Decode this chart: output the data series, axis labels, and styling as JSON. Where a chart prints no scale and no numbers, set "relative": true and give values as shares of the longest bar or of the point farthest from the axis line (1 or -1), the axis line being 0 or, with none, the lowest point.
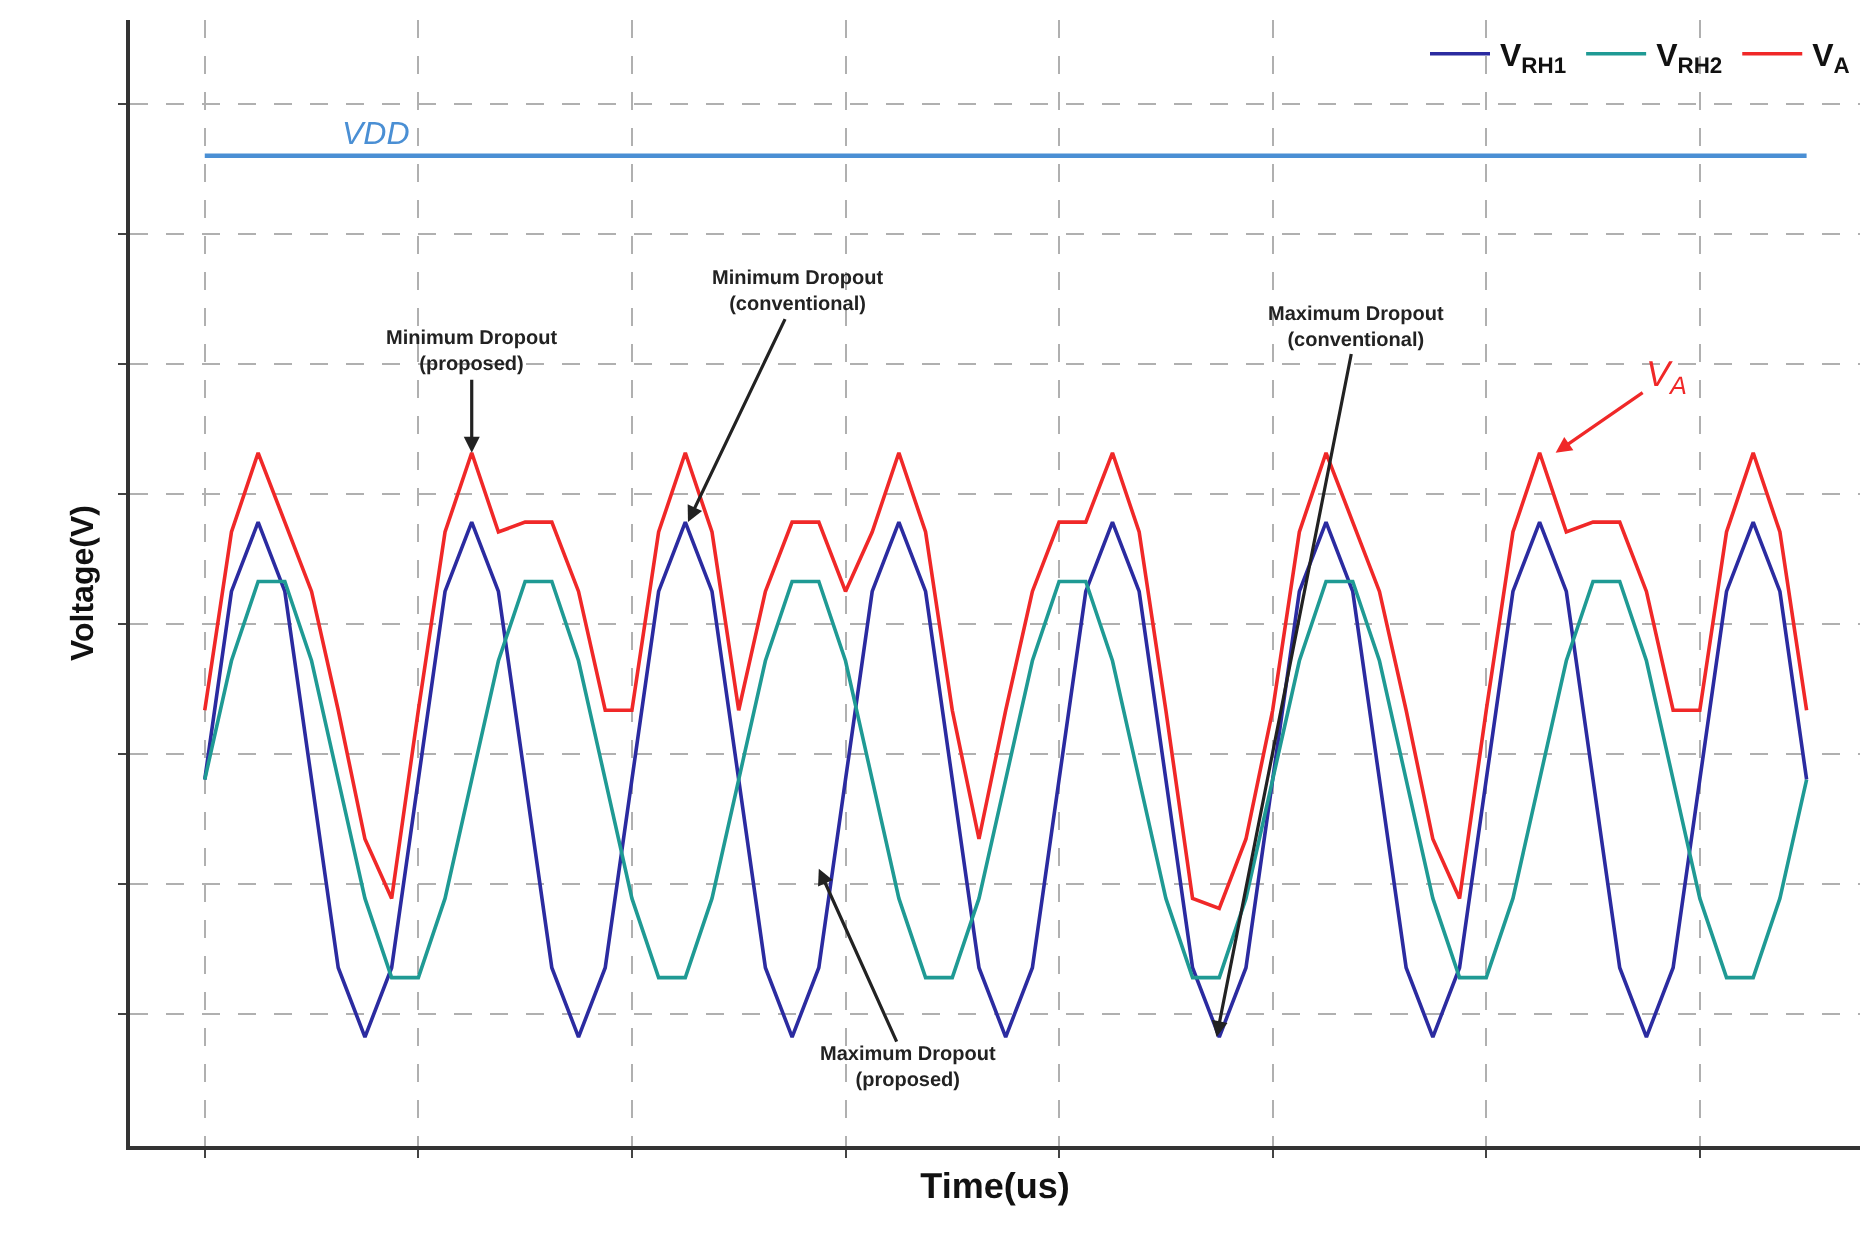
{
  "chart_data": {
    "type": "line",
    "relative": true,
    "xlabel": "Time(us)",
    "ylabel": "Voltage(V)",
    "grid": true,
    "legend": "top right",
    "tick_labels": false,
    "marker": "none",
    "line_style": "solid",
    "categories": [
      null,
      null,
      null,
      null,
      null,
      null,
      null,
      null,
      null,
      null,
      null,
      null,
      null,
      null,
      null,
      null,
      null,
      null,
      null,
      null,
      null,
      null,
      null,
      null,
      null,
      null,
      null,
      null,
      null,
      null,
      null,
      null,
      null,
      null,
      null,
      null,
      null,
      null,
      null,
      null,
      null,
      null,
      null,
      null,
      null,
      null,
      null,
      null,
      null,
      null,
      null,
      null,
      null,
      null,
      null,
      null,
      null,
      null,
      null,
      null,
      null
    ],
    "series": [
      {
        "name": "V$_{RH1}$",
        "color": "#2b2ba0",
        "values": [
          0.37,
          0.56,
          0.63,
          0.56,
          0.37,
          0.18,
          0.11,
          0.18,
          0.37,
          0.56,
          0.63,
          0.56,
          0.37,
          0.18,
          0.11,
          0.18,
          0.37,
          0.56,
          0.63,
          0.56,
          0.37,
          0.18,
          0.11,
          0.18,
          0.37,
          0.56,
          0.63,
          0.56,
          0.37,
          0.18,
          0.11,
          0.18,
          0.37,
          0.56,
          0.63,
          0.56,
          0.37,
          0.18,
          0.11,
          0.18,
          0.37,
          0.56,
          0.63,
          0.56,
          0.37,
          0.18,
          0.11,
          0.18,
          0.37,
          0.56,
          0.63,
          0.56,
          0.37,
          0.18,
          0.11,
          0.18,
          0.37,
          0.56,
          0.63,
          0.56,
          0.37
        ]
      },
      {
        "name": "V$_{RH2}$",
        "color": "#1f9a94",
        "values": [
          0.37,
          0.49,
          0.57,
          0.57,
          0.49,
          0.37,
          0.25,
          0.17,
          0.17,
          0.25,
          0.37,
          0.49,
          0.57,
          0.57,
          0.49,
          0.37,
          0.25,
          0.17,
          0.17,
          0.25,
          0.37,
          0.49,
          0.57,
          0.57,
          0.49,
          0.37,
          0.25,
          0.17,
          0.17,
          0.25,
          0.37,
          0.49,
          0.57,
          0.57,
          0.49,
          0.37,
          0.25,
          0.17,
          0.17,
          0.25,
          0.37,
          0.49,
          0.57,
          0.57,
          0.49,
          0.37,
          0.25,
          0.17,
          0.17,
          0.25,
          0.37,
          0.49,
          0.57,
          0.57,
          0.49,
          0.37,
          0.25,
          0.17,
          0.17,
          0.25,
          0.37
        ]
      },
      {
        "name": "V$_{A}$",
        "color": "#f02828",
        "values": [
          0.44,
          0.62,
          0.7,
          0.63,
          0.56,
          0.44,
          0.31,
          0.25,
          0.44,
          0.62,
          0.7,
          0.62,
          0.63,
          0.63,
          0.56,
          0.44,
          0.44,
          0.62,
          0.7,
          0.62,
          0.44,
          0.56,
          0.63,
          0.63,
          0.56,
          0.62,
          0.7,
          0.62,
          0.44,
          0.31,
          0.44,
          0.56,
          0.63,
          0.63,
          0.7,
          0.62,
          0.44,
          0.25,
          0.24,
          0.31,
          0.44,
          0.62,
          0.7,
          0.63,
          0.56,
          0.44,
          0.31,
          0.25,
          0.44,
          0.62,
          0.7,
          0.62,
          0.63,
          0.63,
          0.56,
          0.44,
          0.44,
          0.62,
          0.7,
          0.62,
          0.44
        ]
      },
      {
        "name": "VDD",
        "color": "#4a8fd4",
        "values": [
          1,
          1,
          1,
          1,
          1,
          1,
          1,
          1,
          1,
          1,
          1,
          1,
          1,
          1,
          1,
          1,
          1,
          1,
          1,
          1,
          1,
          1,
          1,
          1,
          1,
          1,
          1,
          1,
          1,
          1,
          1,
          1,
          1,
          1,
          1,
          1,
          1,
          1,
          1,
          1,
          1,
          1,
          1,
          1,
          1,
          1,
          1,
          1,
          1,
          1,
          1,
          1,
          1,
          1,
          1,
          1,
          1,
          1,
          1,
          1,
          1
        ]
      }
    ],
    "annotations": [
      "Minimum Dropout\n(proposed)",
      "Minimum Dropout\n(conventional)",
      "Maximum Dropout\n(conventional)",
      "Maximum Dropout\n(proposed)",
      "V$_{A}$"
    ]
  }
}
